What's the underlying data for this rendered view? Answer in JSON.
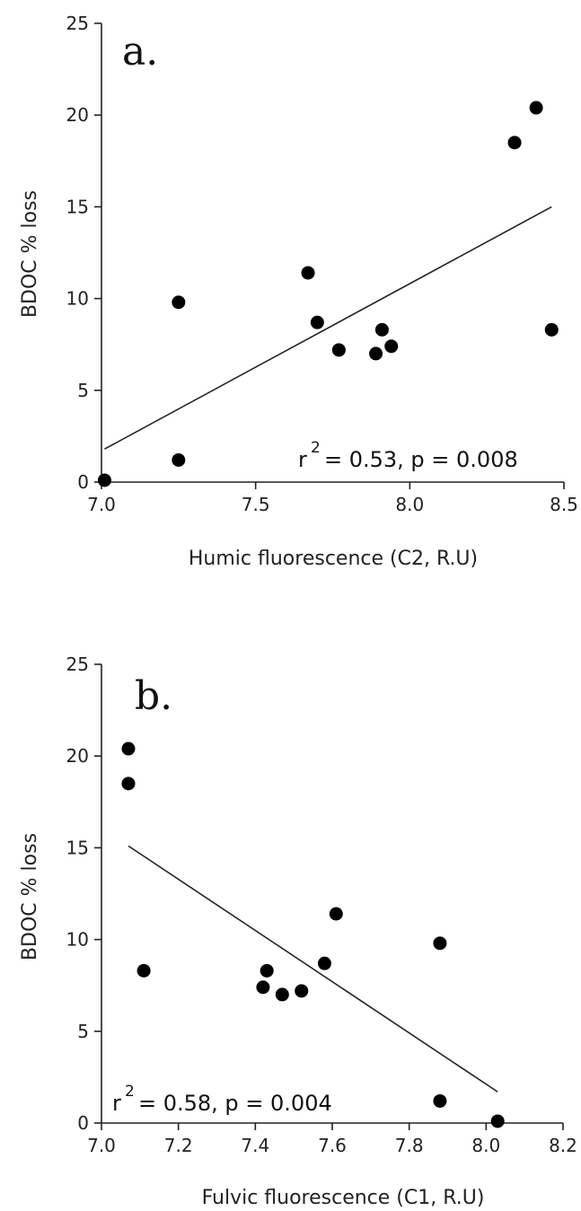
{
  "chart_data": [
    {
      "type": "scatter",
      "panel_label": "a.",
      "xlabel": "Humic fluorescence (C2, R.U)",
      "ylabel": "BDOC % loss",
      "xlim": [
        7.0,
        8.5
      ],
      "ylim": [
        0,
        25
      ],
      "xticks": [
        "7.0",
        "7.5",
        "8.0",
        "8.5"
      ],
      "xtick_values": [
        7.0,
        7.5,
        8.0,
        8.5
      ],
      "yticks": [
        "0",
        "5",
        "10",
        "15",
        "20",
        "25"
      ],
      "ytick_values": [
        0,
        5,
        10,
        15,
        20,
        25
      ],
      "points": [
        {
          "x": 7.01,
          "y": 0.1
        },
        {
          "x": 7.25,
          "y": 1.2
        },
        {
          "x": 7.25,
          "y": 9.8
        },
        {
          "x": 7.67,
          "y": 11.4
        },
        {
          "x": 7.7,
          "y": 8.7
        },
        {
          "x": 7.77,
          "y": 7.2
        },
        {
          "x": 7.89,
          "y": 7.0
        },
        {
          "x": 7.91,
          "y": 8.3
        },
        {
          "x": 7.94,
          "y": 7.4
        },
        {
          "x": 8.34,
          "y": 18.5
        },
        {
          "x": 8.41,
          "y": 20.4
        },
        {
          "x": 8.46,
          "y": 8.3
        }
      ],
      "fit_line": [
        {
          "x": 7.01,
          "y": 1.8
        },
        {
          "x": 8.46,
          "y": 15.0
        }
      ],
      "stat_r": "r",
      "stat_sup": "2",
      "stat_rest": "= 0.53, p = 0.008",
      "grid": false
    },
    {
      "type": "scatter",
      "panel_label": "b.",
      "xlabel": "Fulvic fluorescence (C1, R.U)",
      "ylabel": "BDOC % loss",
      "xlim": [
        7.0,
        8.2
      ],
      "ylim": [
        0,
        25
      ],
      "xticks": [
        "7.0",
        "7.2",
        "7.4",
        "7.6",
        "7.8",
        "8.0",
        "8.2"
      ],
      "xtick_values": [
        7.0,
        7.2,
        7.4,
        7.6,
        7.8,
        8.0,
        8.2
      ],
      "yticks": [
        "0",
        "5",
        "10",
        "15",
        "20",
        "25"
      ],
      "ytick_values": [
        0,
        5,
        10,
        15,
        20,
        25
      ],
      "points": [
        {
          "x": 7.07,
          "y": 20.4
        },
        {
          "x": 7.07,
          "y": 18.5
        },
        {
          "x": 7.11,
          "y": 8.3
        },
        {
          "x": 7.42,
          "y": 7.4
        },
        {
          "x": 7.43,
          "y": 8.3
        },
        {
          "x": 7.47,
          "y": 7.0
        },
        {
          "x": 7.52,
          "y": 7.2
        },
        {
          "x": 7.58,
          "y": 8.7
        },
        {
          "x": 7.61,
          "y": 11.4
        },
        {
          "x": 7.88,
          "y": 9.8
        },
        {
          "x": 7.88,
          "y": 1.2
        },
        {
          "x": 8.03,
          "y": 0.1
        }
      ],
      "fit_line": [
        {
          "x": 7.07,
          "y": 15.1
        },
        {
          "x": 8.03,
          "y": 1.7
        }
      ],
      "stat_r": "r",
      "stat_sup": "2",
      "stat_rest": "= 0.58, p = 0.004",
      "grid": false
    }
  ]
}
